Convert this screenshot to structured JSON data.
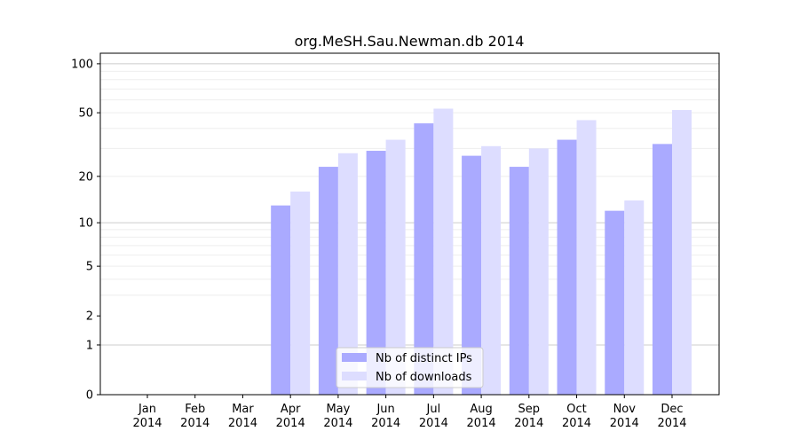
{
  "chart_data": {
    "type": "bar",
    "title": "org.MeSH.Sau.Newman.db 2014",
    "xlabel": "",
    "ylabel": "",
    "yscale": "log(y+1)",
    "ylim": [
      0,
      116
    ],
    "yticks": [
      0,
      1,
      2,
      5,
      10,
      20,
      50,
      100
    ],
    "grid": true,
    "legend_position": "lower-center",
    "categories": [
      "Jan\n2014",
      "Feb\n2014",
      "Mar\n2014",
      "Apr\n2014",
      "May\n2014",
      "Jun\n2014",
      "Jul\n2014",
      "Aug\n2014",
      "Sep\n2014",
      "Oct\n2014",
      "Nov\n2014",
      "Dec\n2014"
    ],
    "series": [
      {
        "name": "Nb of distinct IPs",
        "color": "#aaaaff",
        "values": [
          0,
          0,
          0,
          13,
          23,
          29,
          43,
          27,
          23,
          34,
          12,
          32
        ]
      },
      {
        "name": "Nb of downloads",
        "color": "#ddddff",
        "values": [
          0,
          0,
          0,
          16,
          28,
          34,
          53,
          31,
          30,
          45,
          14,
          52
        ]
      }
    ]
  }
}
